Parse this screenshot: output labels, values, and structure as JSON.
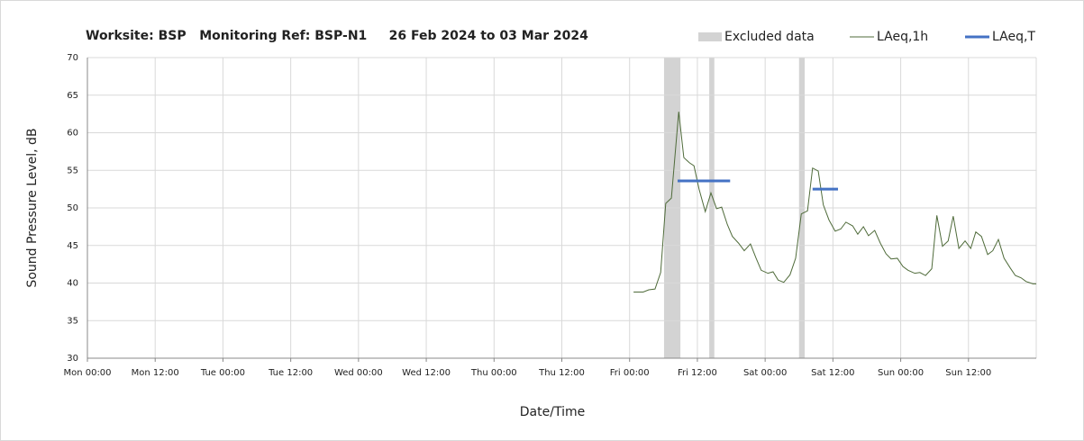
{
  "chart_data": {
    "type": "line",
    "title": "Worksite: BSP   Monitoring Ref: BSP-N1     26 Feb 2024 to 03 Mar 2024",
    "x_label": "Date/Time",
    "y_label": "Sound Pressure Level, dB",
    "xlim": [
      0,
      168
    ],
    "xticks": [
      {
        "value": 0,
        "label": "Mon 00:00"
      },
      {
        "value": 12,
        "label": "Mon 12:00"
      },
      {
        "value": 24,
        "label": "Tue 00:00"
      },
      {
        "value": 36,
        "label": "Tue 12:00"
      },
      {
        "value": 48,
        "label": "Wed 00:00"
      },
      {
        "value": 60,
        "label": "Wed 12:00"
      },
      {
        "value": 72,
        "label": "Thu 00:00"
      },
      {
        "value": 84,
        "label": "Thu 12:00"
      },
      {
        "value": 96,
        "label": "Fri 00:00"
      },
      {
        "value": 108,
        "label": "Fri 12:00"
      },
      {
        "value": 120,
        "label": "Sat 00:00"
      },
      {
        "value": 132,
        "label": "Sat 12:00"
      },
      {
        "value": 144,
        "label": "Sun 00:00"
      },
      {
        "value": 156,
        "label": "Sun 12:00"
      }
    ],
    "ylim": [
      30,
      70
    ],
    "yticks": [
      30,
      35,
      40,
      45,
      50,
      55,
      60,
      65,
      70
    ],
    "grid": true,
    "excluded": {
      "name": "Excluded data",
      "color": "#d3d3d3",
      "ranges": [
        [
          102.1,
          105.0
        ],
        [
          110.1,
          111.0
        ],
        [
          126.0,
          127.0
        ]
      ]
    },
    "series": [
      {
        "name": "LAeq,1h",
        "color": "#4f6b3a",
        "x": [
          96.7,
          98.4,
          99.4,
          100.5,
          101.5,
          102.4,
          103.4,
          104.7,
          105.6,
          106.6,
          107.4,
          108.3,
          109.4,
          110.4,
          111.4,
          112.3,
          113.3,
          114.2,
          115.3,
          116.3,
          117.4,
          118.4,
          119.3,
          120.5,
          121.4,
          122.3,
          123.3,
          124.4,
          125.4,
          126.4,
          127.5,
          128.4,
          129.4,
          130.3,
          131.3,
          132.4,
          133.4,
          134.3,
          135.5,
          136.4,
          137.4,
          138.3,
          139.4,
          140.4,
          141.4,
          142.3,
          143.4,
          144.4,
          145.3,
          146.5,
          147.4,
          148.4,
          149.5,
          150.4,
          151.4,
          152.4,
          153.3,
          154.3,
          155.4,
          156.4,
          157.3,
          158.3,
          159.4,
          160.3,
          161.3,
          162.3,
          163.4,
          164.3,
          165.3,
          166.2,
          167.4,
          168
        ],
        "values": [
          38.8,
          38.8,
          39.1,
          39.2,
          41.4,
          50.6,
          51.3,
          62.8,
          56.7,
          56,
          55.6,
          52.5,
          49.5,
          52,
          49.9,
          50.1,
          47.8,
          46.2,
          45.3,
          44.3,
          45.2,
          43.3,
          41.7,
          41.3,
          41.5,
          40.4,
          40.1,
          41.1,
          43.3,
          49.2,
          49.6,
          55.3,
          54.9,
          50.4,
          48.4,
          46.9,
          47.2,
          48.1,
          47.6,
          46.5,
          47.5,
          46.3,
          47,
          45.3,
          43.9,
          43.2,
          43.3,
          42.2,
          41.7,
          41.3,
          41.4,
          41,
          41.9,
          49,
          44.9,
          45.6,
          48.9,
          44.6,
          45.6,
          44.6,
          46.8,
          46.2,
          43.8,
          44.3,
          45.8,
          43.3,
          42,
          41,
          40.7,
          40.2,
          39.9,
          39.9
        ]
      }
    ],
    "period_levels": {
      "name": "LAeq,T",
      "color": "#4472c4",
      "segments": [
        {
          "x": [
            104.5,
            113.8
          ],
          "value": 53.6
        },
        {
          "x": [
            128.4,
            132.9
          ],
          "value": 52.5
        }
      ]
    }
  }
}
